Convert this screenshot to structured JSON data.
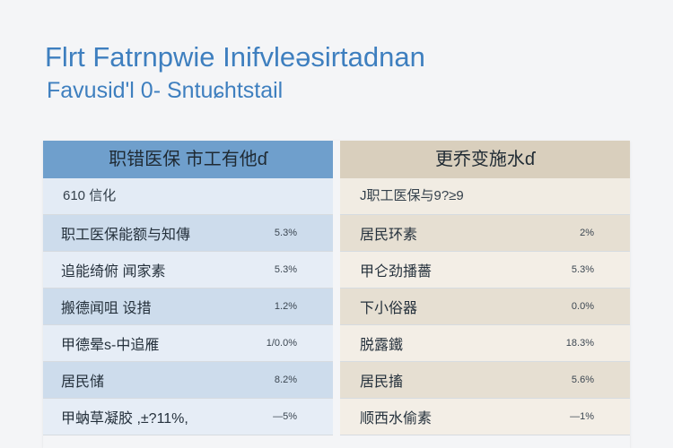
{
  "title": "Flrt Fatrnpwie Inifvleəsirtadnan",
  "subtitle": "Favusid'l 0- Sntuɕhtstail",
  "left": {
    "header": "职错医保 市工有他ɗ",
    "subheader": "610 信化",
    "rows": [
      {
        "label": "职工医保能额与知傳",
        "value": "5.3%"
      },
      {
        "label": "追能绮俯 闻家素",
        "value": "5.3%"
      },
      {
        "label": "搬德闻咀 设措",
        "value": "1.2%"
      },
      {
        "label": "甲德晕s-中追雁",
        "value": "1/0.0%"
      },
      {
        "label": "居民储",
        "value": "8.2%"
      },
      {
        "label": "甲蚋草凝胶 ,±?11%,",
        "value": "—5%"
      }
    ]
  },
  "right": {
    "header": "更乔变施水ɗ",
    "subheader": "J职工医保与9?≥9",
    "rows": [
      {
        "label": "居民环素",
        "value": "2%"
      },
      {
        "label": "甲仑劲播薔",
        "value": "5.3%"
      },
      {
        "label": "下小俗器",
        "value": "0.0%"
      },
      {
        "label": "脱露鐵",
        "value": "18.3%"
      },
      {
        "label": "居民搐",
        "value": "5.6%"
      },
      {
        "label": "顺西水偷素",
        "value": "—1%"
      }
    ]
  }
}
